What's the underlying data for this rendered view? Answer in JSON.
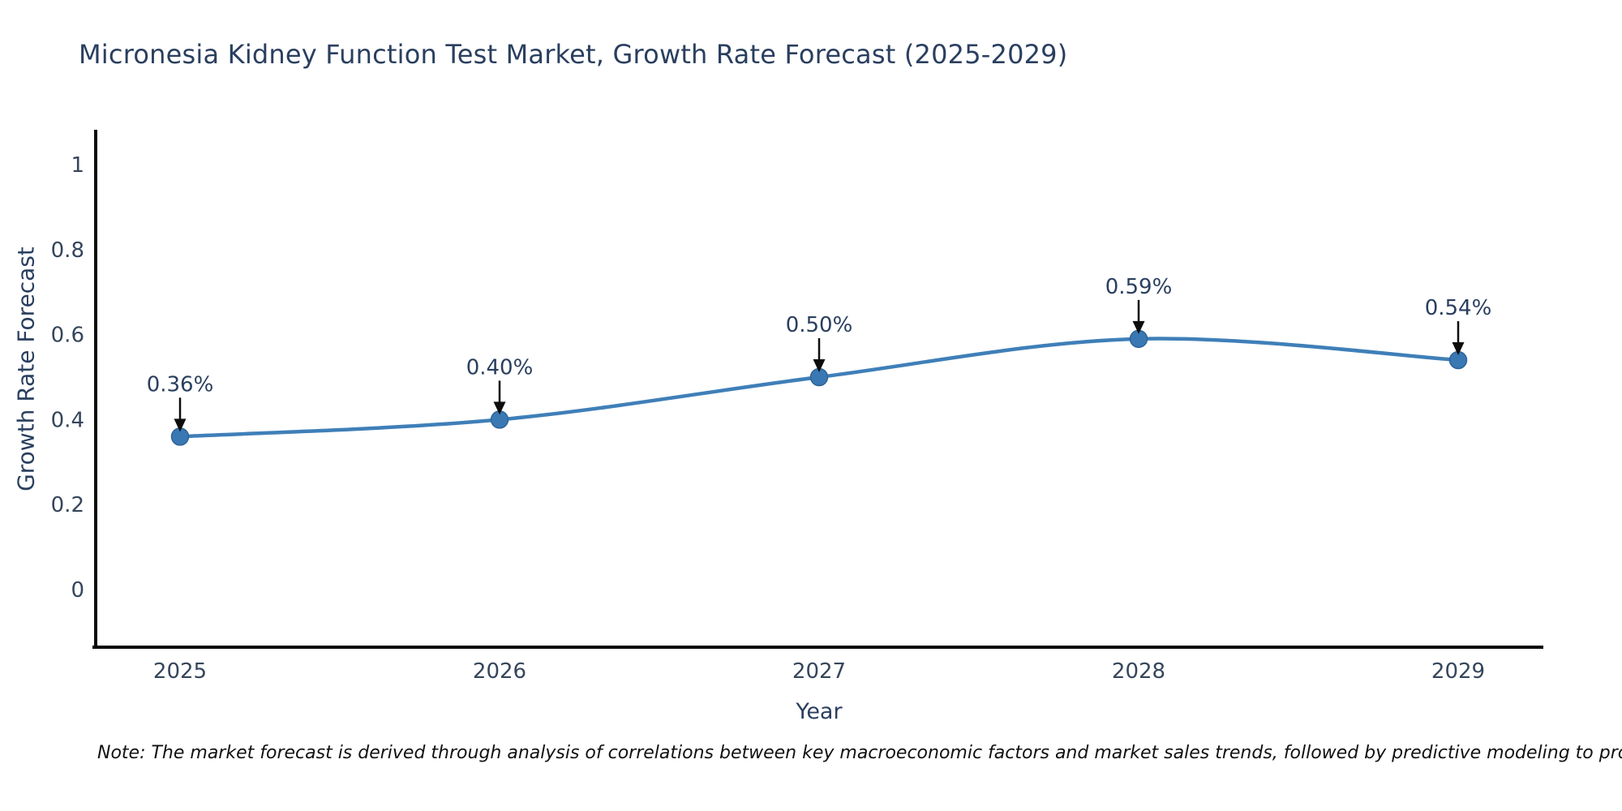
{
  "title": "Micronesia Kidney Function Test Market, Growth Rate Forecast (2025-2029)",
  "note": "Note: The market forecast is derived through analysis of correlations between key macroeconomic factors and market sales trends, followed by predictive modeling to project future sales",
  "chart_data": {
    "type": "line",
    "title": "Micronesia Kidney Function Test Market, Growth Rate Forecast (2025-2029)",
    "xlabel": "Year",
    "ylabel": "Growth Rate Forecast",
    "categories": [
      "2025",
      "2026",
      "2027",
      "2028",
      "2029"
    ],
    "x": [
      2025,
      2026,
      2027,
      2028,
      2029
    ],
    "values": [
      0.36,
      0.4,
      0.5,
      0.59,
      0.54
    ],
    "annotations": [
      "0.36%",
      "0.40%",
      "0.50%",
      "0.59%",
      "0.54%"
    ],
    "yticks": [
      "0",
      "0.2",
      "0.4",
      "0.6",
      "0.8",
      "1"
    ],
    "ytick_values": [
      0,
      0.2,
      0.4,
      0.6,
      0.8,
      1
    ],
    "ylim": [
      -0.14,
      1.08
    ],
    "grid": false,
    "legend": "none",
    "smooth": true,
    "colors": {
      "line": "#3f7fb8",
      "marker_fill": "#3a78b4",
      "marker_edge": "#2e6496",
      "arrow": "#0d0d0d",
      "spine": "#0a0a0a",
      "title_text": "#2a3f5f",
      "tick_text": "#35465c"
    }
  }
}
